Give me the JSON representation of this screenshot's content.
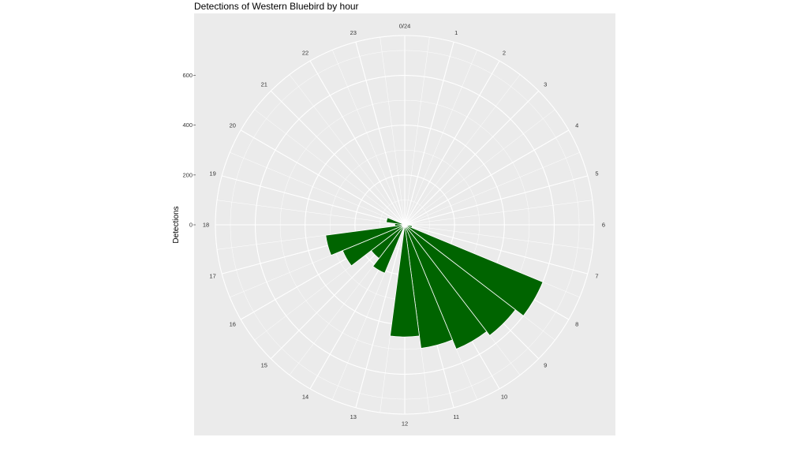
{
  "chart_data": {
    "type": "bar",
    "coord": "polar",
    "title": "Detections of Western Bluebird by hour",
    "xlabel": "",
    "ylabel": "Detections",
    "categories": [
      "0/24",
      "1",
      "2",
      "3",
      "4",
      "5",
      "6",
      "7",
      "8",
      "9",
      "10",
      "11",
      "12",
      "13",
      "14",
      "15",
      "16",
      "17",
      "18",
      "19",
      "20",
      "21",
      "22",
      "23"
    ],
    "series": [
      {
        "values": [
          0,
          0,
          0,
          0,
          0,
          0,
          5,
          30,
          600,
          560,
          540,
          500,
          450,
          0,
          210,
          170,
          270,
          320,
          40,
          75,
          0,
          0,
          0,
          0
        ]
      }
    ],
    "radial_ticks": [
      "0",
      "200",
      "400",
      "600"
    ],
    "radial_tick_values": [
      0,
      200,
      400,
      600
    ],
    "ylim": [
      0,
      760
    ],
    "grid": true,
    "bar_color": "#006400",
    "panel_color": "#EBEBEB"
  }
}
